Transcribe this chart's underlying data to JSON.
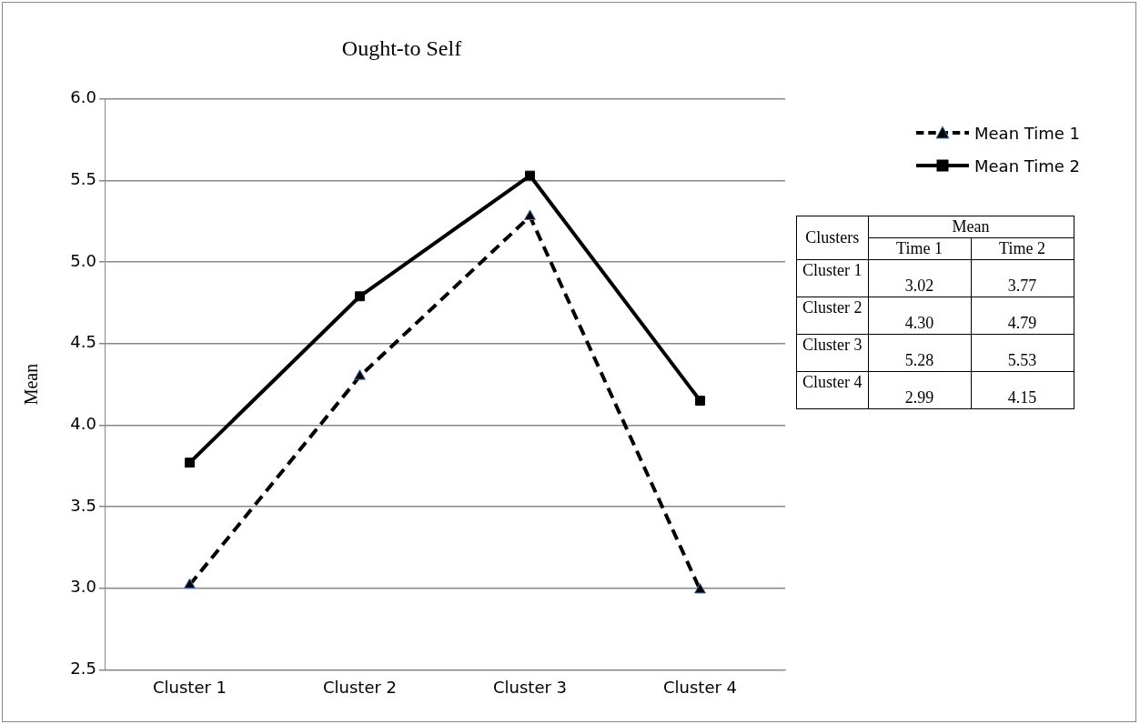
{
  "chart_data": [
    {
      "type": "line",
      "title": "Ought-to Self",
      "ylabel": "Mean",
      "categories": [
        "Cluster 1",
        "Cluster 2",
        "Cluster 3",
        "Cluster 4"
      ],
      "series": [
        {
          "name": "Mean Time 1",
          "color": "#000000",
          "values": [
            3.02,
            4.3,
            5.28,
            2.99
          ],
          "marker": "triangle",
          "line_style": "dashed"
        },
        {
          "name": "Mean Time 2",
          "color": "#000000",
          "values": [
            3.77,
            4.79,
            5.53,
            4.15
          ],
          "marker": "square",
          "line_style": "solid"
        }
      ],
      "ylim": [
        2.5,
        6.0
      ],
      "yticks": [
        {
          "value": 2.5,
          "label": "2.5"
        },
        {
          "value": 3,
          "label": "3.0"
        },
        {
          "value": 3.5,
          "label": "3.5"
        },
        {
          "value": 4,
          "label": "4.0"
        },
        {
          "value": 4.5,
          "label": "4.5"
        },
        {
          "value": 5,
          "label": "5.0"
        },
        {
          "value": 5.5,
          "label": "5.5"
        },
        {
          "value": 6,
          "label": "6.0"
        }
      ],
      "grid": "y",
      "legend": "top right"
    },
    {
      "type": "other",
      "annotations": [
        "Clusters",
        "Mean"
      ],
      "categories": [
        "Time 1",
        "Time 2"
      ],
      "y_categories": [
        "Cluster 1",
        "Cluster 2",
        "Cluster 3",
        "Cluster 4"
      ],
      "cell_labels": [
        [
          "3.02",
          "3.77"
        ],
        [
          "4.30",
          "4.79"
        ],
        [
          "5.28",
          "5.53"
        ],
        [
          "2.99",
          "4.15"
        ]
      ]
    }
  ]
}
